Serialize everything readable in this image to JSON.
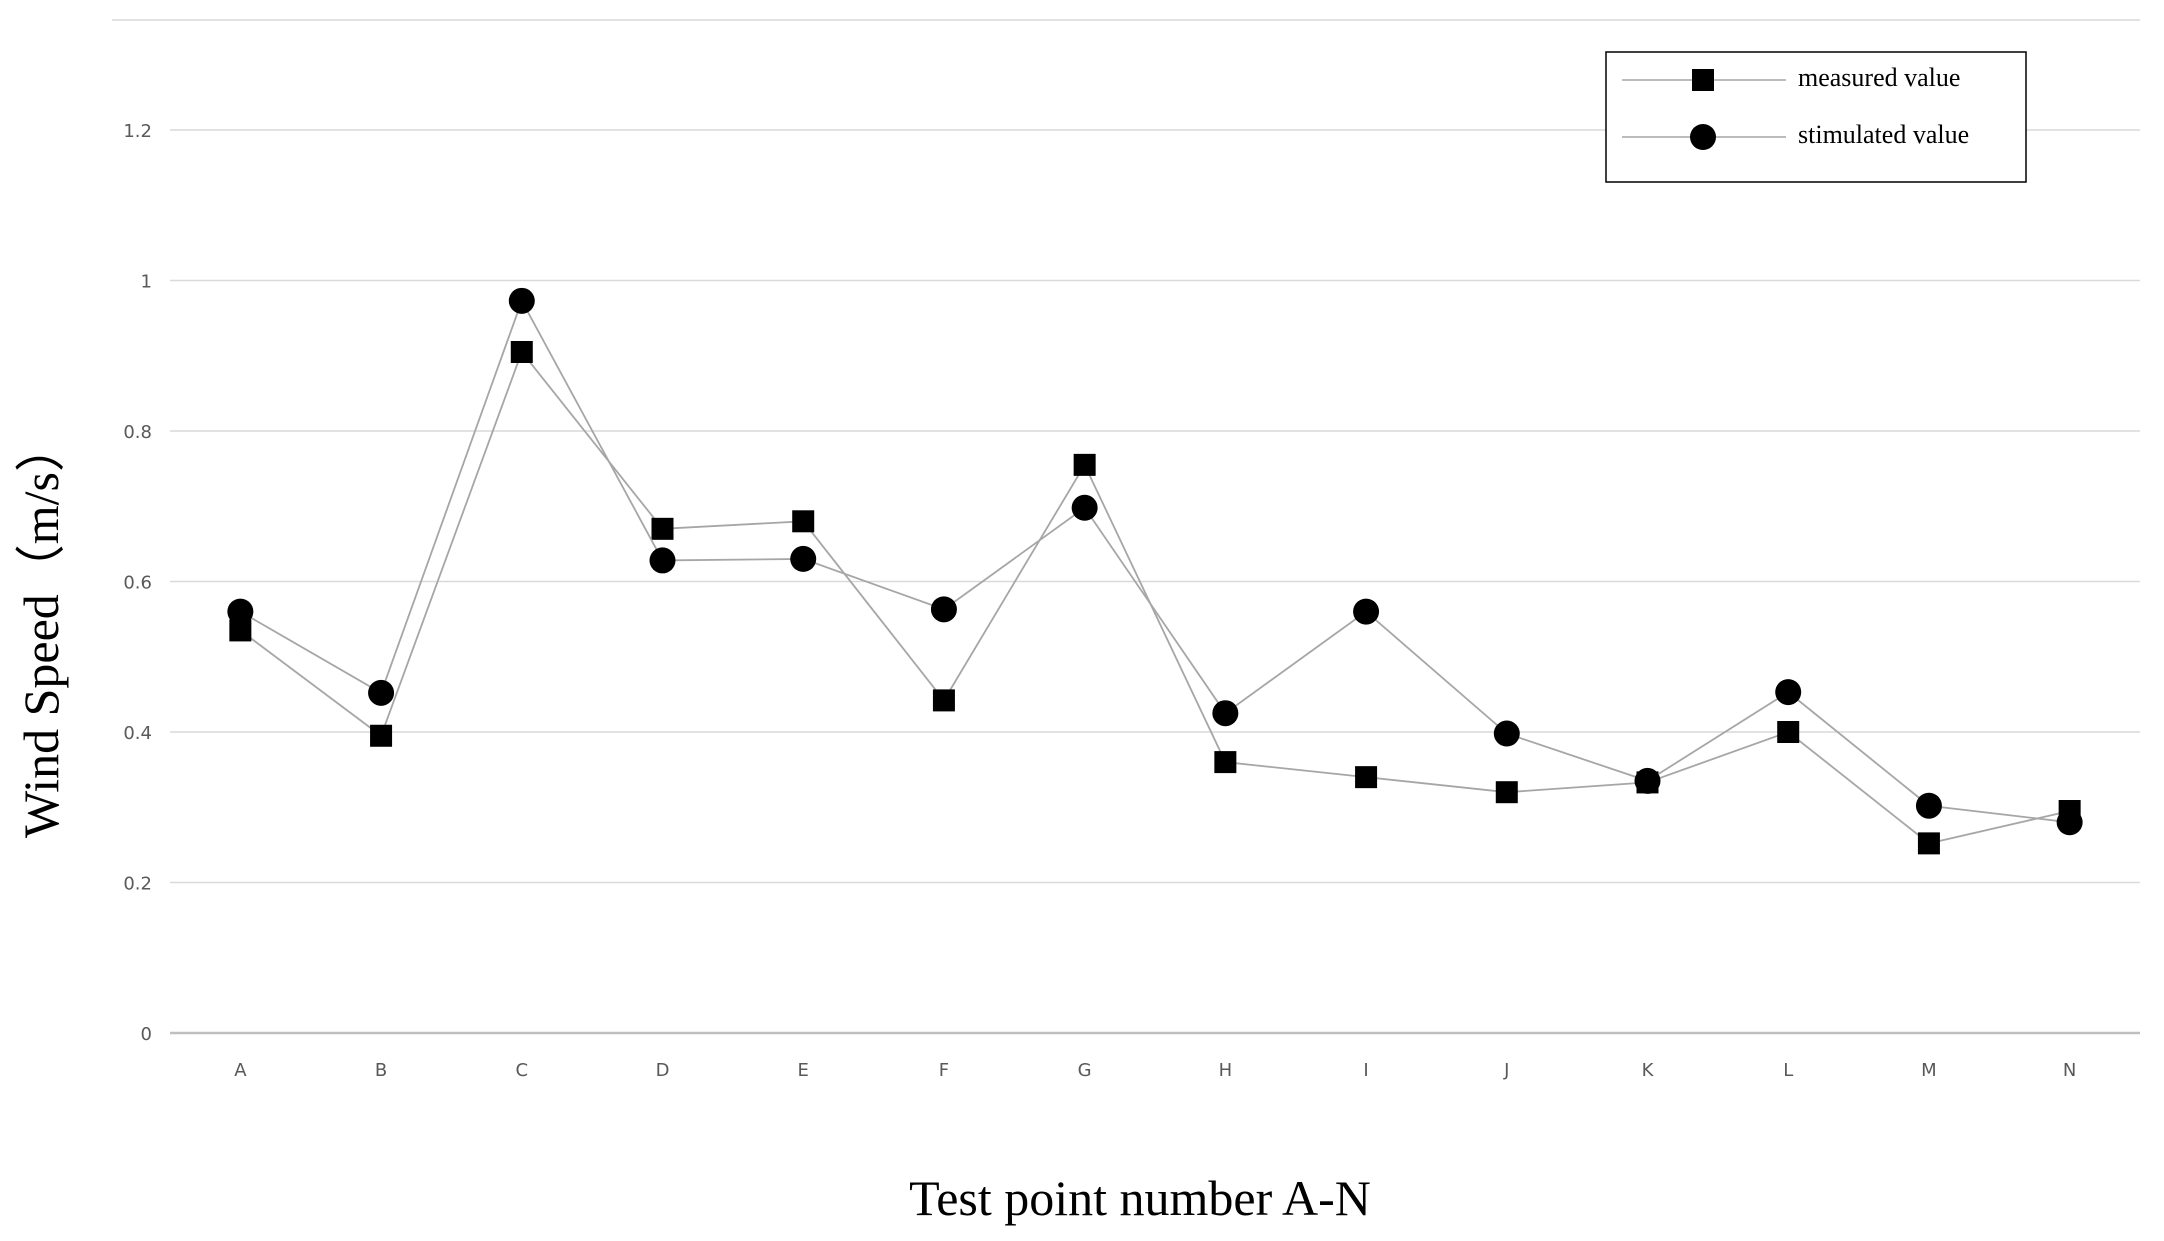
{
  "chart_data": {
    "type": "line",
    "categories": [
      "A",
      "B",
      "C",
      "D",
      "E",
      "F",
      "G",
      "H",
      "I",
      "J",
      "K",
      "L",
      "M",
      "N"
    ],
    "series": [
      {
        "name": "measured value",
        "marker": "square",
        "values": [
          0.535,
          0.395,
          0.905,
          0.67,
          0.68,
          0.442,
          0.755,
          0.36,
          0.34,
          0.32,
          0.333,
          0.4,
          0.252,
          0.295
        ]
      },
      {
        "name": "stimulated value",
        "marker": "circle",
        "values": [
          0.56,
          0.452,
          0.973,
          0.628,
          0.63,
          0.563,
          0.698,
          0.425,
          0.56,
          0.398,
          0.335,
          0.453,
          0.302,
          0.28
        ]
      }
    ],
    "title": "",
    "xlabel": "Test point number A-N",
    "ylabel": "Wind   Speed（m/s）",
    "ylim": [
      0,
      1.2
    ],
    "yticks": [
      "0",
      "0.2",
      "0.4",
      "0.6",
      "0.8",
      "1",
      "1.2"
    ],
    "grid": true,
    "legend_position": "top-right",
    "colors": {
      "line": "#a6a6a6",
      "marker": "#000000",
      "grid": "#d9d9d9",
      "axis": "#bfbfbf"
    }
  }
}
